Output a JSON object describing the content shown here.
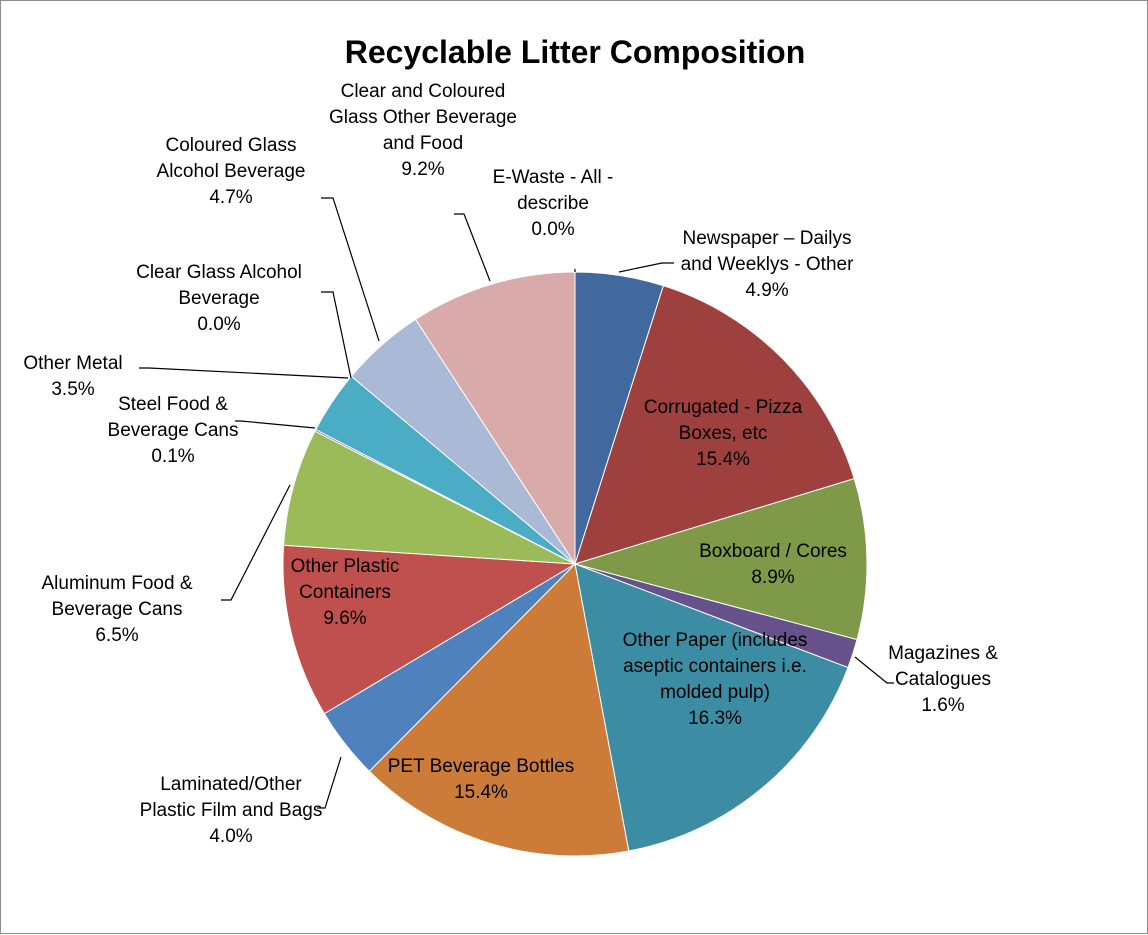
{
  "chart_data": {
    "type": "pie",
    "title": "Recyclable Litter Composition",
    "slices": [
      {
        "label": "Newspaper – Dailys and Weeklys - Other",
        "value": 4.9,
        "display": "4.9%",
        "color": "#4169A0"
      },
      {
        "label": "Corrugated - Pizza Boxes, etc",
        "value": 15.4,
        "display": "15.4%",
        "color": "#9E403E"
      },
      {
        "label": "Boxboard / Cores",
        "value": 8.9,
        "display": "8.9%",
        "color": "#7E9A48"
      },
      {
        "label": "Magazines & Catalogues",
        "value": 1.6,
        "display": "1.6%",
        "color": "#67518A"
      },
      {
        "label": "Other Paper (includes aseptic containers i.e. molded pulp)",
        "value": 16.3,
        "display": "16.3%",
        "color": "#3C8DA3"
      },
      {
        "label": "PET Beverage Bottles",
        "value": 15.4,
        "display": "15.4%",
        "color": "#CC7B38"
      },
      {
        "label": "Laminated/Other Plastic Film and Bags",
        "value": 4.0,
        "display": "4.0%",
        "color": "#4F81BD"
      },
      {
        "label": "Other Plastic Containers",
        "value": 9.6,
        "display": "9.6%",
        "color": "#C0504D"
      },
      {
        "label": "Aluminum Food & Beverage Cans",
        "value": 6.5,
        "display": "6.5%",
        "color": "#9BBB59"
      },
      {
        "label": "Steel Food & Beverage Cans",
        "value": 0.1,
        "display": "0.1%",
        "color": "#8064A2"
      },
      {
        "label": "Other Metal",
        "value": 3.5,
        "display": "3.5%",
        "color": "#4BACC6"
      },
      {
        "label": "Clear Glass Alcohol Beverage",
        "value": 0.0,
        "display": "0.0%",
        "color": "#F79646"
      },
      {
        "label": "Coloured Glass Alcohol Beverage",
        "value": 4.7,
        "display": "4.7%",
        "color": "#AAB9D6"
      },
      {
        "label": "Clear and Coloured Glass Other Beverage and Food",
        "value": 9.2,
        "display": "9.2%",
        "color": "#D9AAAA"
      },
      {
        "label": "E-Waste - All - describe",
        "value": 0.0,
        "display": "0.0%",
        "color": "#C3D69B"
      }
    ]
  },
  "labels": [
    {
      "lines": [
        "Newspaper – Dailys",
        "and Weeklys - Other",
        "4.9%"
      ]
    },
    {
      "lines": [
        "Corrugated - Pizza",
        "Boxes, etc",
        "15.4%"
      ]
    },
    {
      "lines": [
        "Boxboard / Cores",
        "8.9%"
      ]
    },
    {
      "lines": [
        "Magazines &",
        "Catalogues",
        "1.6%"
      ]
    },
    {
      "lines": [
        "Other Paper (includes",
        "aseptic containers i.e.",
        "molded pulp)",
        "16.3%"
      ]
    },
    {
      "lines": [
        "PET Beverage Bottles",
        "15.4%"
      ]
    },
    {
      "lines": [
        "Laminated/Other",
        "Plastic Film and Bags",
        "4.0%"
      ]
    },
    {
      "lines": [
        "Other Plastic",
        "Containers",
        "9.6%"
      ]
    },
    {
      "lines": [
        "Aluminum Food &",
        "Beverage Cans",
        "6.5%"
      ]
    },
    {
      "lines": [
        "Steel Food &",
        "Beverage Cans",
        "0.1%"
      ]
    },
    {
      "lines": [
        "Other Metal",
        "3.5%"
      ]
    },
    {
      "lines": [
        "Clear Glass Alcohol",
        "Beverage",
        "0.0%"
      ]
    },
    {
      "lines": [
        "Coloured Glass",
        "Alcohol Beverage",
        "4.7%"
      ]
    },
    {
      "lines": [
        "Clear and Coloured",
        "Glass Other Beverage",
        "and Food",
        "9.2%"
      ]
    },
    {
      "lines": [
        "E-Waste - All -",
        "describe",
        "0.0%"
      ]
    }
  ]
}
